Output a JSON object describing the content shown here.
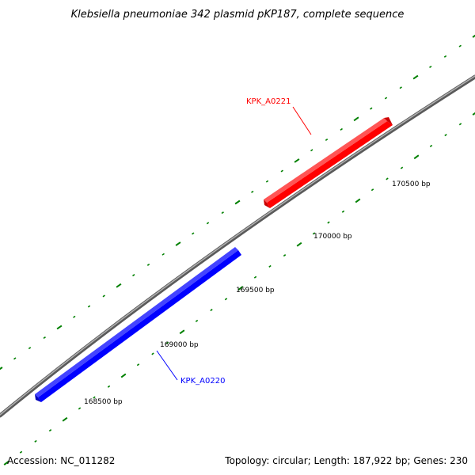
{
  "title": "Klebsiella pneumoniae 342 plasmid pKP187, complete sequence",
  "footer": {
    "accession": "Accession: NC_011282",
    "summary": "Topology: circular; Length: 187,922 bp; Genes: 230"
  },
  "ticks": [
    {
      "label": "168500 bp"
    },
    {
      "label": "169000 bp"
    },
    {
      "label": "169500 bp"
    },
    {
      "label": "170000 bp"
    },
    {
      "label": "170500 bp"
    }
  ],
  "genes": [
    {
      "name": "KPK_A0220",
      "strand": "reverse",
      "color": "#0000ff"
    },
    {
      "name": "KPK_A0221",
      "strand": "forward",
      "color": "#ff0000"
    }
  ],
  "colors": {
    "backbone": "#808080",
    "tick": "#008000"
  }
}
